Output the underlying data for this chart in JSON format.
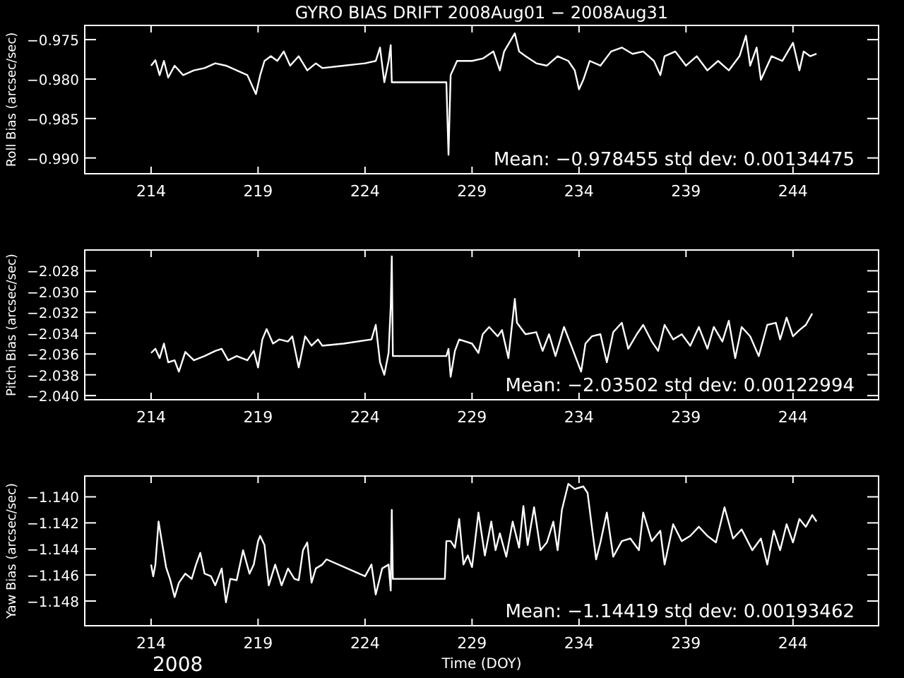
{
  "chart_data": [
    {
      "type": "line",
      "title": "GYRO BIAS DRIFT 2008Aug01 − 2008Aug31",
      "ylabel": "Roll Bias (arcsec/sec)",
      "xlim": [
        210.9,
        248
      ],
      "xticks": [
        214,
        219,
        224,
        229,
        234,
        239,
        244
      ],
      "ylim": [
        -0.992,
        -0.9732
      ],
      "yticks": [
        {
          "value": -0.975,
          "label": "−0.975"
        },
        {
          "value": -0.98,
          "label": "−0.980"
        },
        {
          "value": -0.985,
          "label": "−0.985"
        },
        {
          "value": -0.99,
          "label": "−0.990"
        }
      ],
      "grid": false,
      "annotations": [
        "Mean: −0.978455 std dev: 0.00134475"
      ],
      "series": [
        {
          "color": "#ffffff",
          "x": [
            214,
            214.2,
            214.4,
            214.6,
            214.8,
            215.1,
            215.5,
            216,
            216.5,
            217,
            217.5,
            218,
            218.5,
            218.9,
            219.1,
            219.3,
            219.6,
            219.9,
            220.2,
            220.5,
            220.9,
            221.3,
            221.7,
            222,
            223,
            224,
            224.5,
            224.7,
            224.9,
            225.1,
            225.2,
            225.25,
            227.8,
            227.9,
            228,
            228.3,
            229,
            229.5,
            230,
            230.3,
            230.5,
            231,
            231.2,
            231.5,
            232,
            232.5,
            233,
            233.5,
            233.8,
            234,
            234.2,
            234.5,
            235,
            235.5,
            236,
            236.5,
            237,
            237.5,
            237.8,
            238,
            238.5,
            239,
            239.5,
            240,
            240.5,
            241,
            241.5,
            241.8,
            242,
            242.3,
            242.5,
            243,
            243.5,
            244,
            244.3,
            244.5,
            244.8,
            245.1
          ],
          "values": [
            -0.9783,
            -0.9776,
            -0.9795,
            -0.9777,
            -0.9798,
            -0.9783,
            -0.9795,
            -0.9789,
            -0.9786,
            -0.978,
            -0.9783,
            -0.9789,
            -0.9795,
            -0.9819,
            -0.9795,
            -0.9777,
            -0.9771,
            -0.9777,
            -0.9765,
            -0.9783,
            -0.9771,
            -0.9789,
            -0.978,
            -0.9786,
            -0.9783,
            -0.978,
            -0.9777,
            -0.976,
            -0.9804,
            -0.9777,
            -0.9757,
            -0.9804,
            -0.9804,
            -0.9896,
            -0.9795,
            -0.9777,
            -0.9777,
            -0.9774,
            -0.9765,
            -0.9789,
            -0.9765,
            -0.9742,
            -0.9765,
            -0.9771,
            -0.978,
            -0.9783,
            -0.9771,
            -0.9777,
            -0.9789,
            -0.9813,
            -0.9801,
            -0.9777,
            -0.9783,
            -0.9765,
            -0.976,
            -0.9768,
            -0.9765,
            -0.9777,
            -0.9795,
            -0.9771,
            -0.9765,
            -0.9783,
            -0.9771,
            -0.9789,
            -0.9777,
            -0.9789,
            -0.9771,
            -0.9745,
            -0.9783,
            -0.976,
            -0.9801,
            -0.9771,
            -0.9777,
            -0.9754,
            -0.9789,
            -0.9765,
            -0.9771,
            -0.9768
          ]
        }
      ]
    },
    {
      "type": "line",
      "ylabel": "Pitch Bias (arcsec/sec)",
      "xlim": [
        210.9,
        248
      ],
      "xticks": [
        214,
        219,
        224,
        229,
        234,
        239,
        244
      ],
      "ylim": [
        -2.0404,
        -2.026
      ],
      "yticks": [
        {
          "value": -2.028,
          "label": "−2.028"
        },
        {
          "value": -2.03,
          "label": "−2.030"
        },
        {
          "value": -2.032,
          "label": "−2.032"
        },
        {
          "value": -2.034,
          "label": "−2.034"
        },
        {
          "value": -2.036,
          "label": "−2.036"
        },
        {
          "value": -2.038,
          "label": "−2.038"
        },
        {
          "value": -2.04,
          "label": "−2.040"
        }
      ],
      "grid": false,
      "annotations": [
        "Mean: −2.03502 std dev: 0.00122994"
      ],
      "series": [
        {
          "color": "#ffffff",
          "x": [
            214,
            214.2,
            214.4,
            214.6,
            214.8,
            215.1,
            215.3,
            215.6,
            216,
            216.5,
            217,
            217.3,
            217.6,
            218,
            218.5,
            218.8,
            219,
            219.2,
            219.4,
            219.7,
            220,
            220.4,
            220.6,
            220.9,
            221.2,
            221.5,
            221.8,
            222,
            223,
            224.3,
            224.5,
            224.7,
            224.9,
            225.1,
            225.2,
            225.25,
            225.3,
            227.8,
            227.9,
            228,
            228.2,
            228.4,
            229,
            229.3,
            229.5,
            229.8,
            230.2,
            230.4,
            230.7,
            231,
            231.1,
            231.5,
            232,
            232.3,
            232.6,
            232.9,
            233.3,
            233.6,
            234.1,
            234.3,
            234.6,
            235,
            235.3,
            235.6,
            236,
            236.3,
            236.7,
            237,
            237.4,
            237.7,
            238,
            238.4,
            238.8,
            239.2,
            239.6,
            240,
            240.3,
            240.7,
            241,
            241.3,
            241.6,
            242,
            242.4,
            242.8,
            243.2,
            243.4,
            243.7,
            244,
            244.3,
            244.6,
            244.9
          ],
          "values": [
            -2.0359,
            -2.0355,
            -2.0364,
            -2.035,
            -2.0368,
            -2.0366,
            -2.0377,
            -2.0358,
            -2.0366,
            -2.0362,
            -2.0357,
            -2.0355,
            -2.0366,
            -2.0362,
            -2.0366,
            -2.0357,
            -2.0373,
            -2.0346,
            -2.0336,
            -2.035,
            -2.0346,
            -2.0348,
            -2.0343,
            -2.0373,
            -2.0343,
            -2.0352,
            -2.0346,
            -2.0352,
            -2.035,
            -2.0346,
            -2.0332,
            -2.0368,
            -2.038,
            -2.0359,
            -2.0314,
            -2.0266,
            -2.0362,
            -2.0362,
            -2.0355,
            -2.0382,
            -2.0357,
            -2.0346,
            -2.035,
            -2.0359,
            -2.0341,
            -2.0334,
            -2.0343,
            -2.0337,
            -2.0364,
            -2.0307,
            -2.033,
            -2.0341,
            -2.0339,
            -2.0357,
            -2.0341,
            -2.0362,
            -2.0334,
            -2.035,
            -2.0377,
            -2.035,
            -2.0343,
            -2.0341,
            -2.0368,
            -2.0339,
            -2.033,
            -2.0355,
            -2.0341,
            -2.0332,
            -2.0348,
            -2.0357,
            -2.0332,
            -2.0346,
            -2.0341,
            -2.0352,
            -2.0334,
            -2.0355,
            -2.0334,
            -2.0348,
            -2.0328,
            -2.0364,
            -2.0334,
            -2.0343,
            -2.0362,
            -2.0332,
            -2.033,
            -2.0346,
            -2.0325,
            -2.0343,
            -2.0337,
            -2.0332,
            -2.0321
          ]
        }
      ]
    },
    {
      "type": "line",
      "xlabel": "Time (DOY)",
      "ylabel": "Yaw Bias (arcsec/sec)",
      "xlim": [
        210.9,
        248
      ],
      "xticks": [
        214,
        219,
        224,
        229,
        234,
        239,
        244
      ],
      "ylim": [
        -1.1499,
        -1.1384
      ],
      "yticks": [
        {
          "value": -1.14,
          "label": "−1.140"
        },
        {
          "value": -1.142,
          "label": "−1.142"
        },
        {
          "value": -1.144,
          "label": "−1.144"
        },
        {
          "value": -1.146,
          "label": "−1.146"
        },
        {
          "value": -1.148,
          "label": "−1.148"
        }
      ],
      "grid": false,
      "annotations": [
        "Mean: −1.14419 std dev: 0.00193462",
        "2008"
      ],
      "series": [
        {
          "color": "#ffffff",
          "x": [
            214,
            214.1,
            214.2,
            214.3,
            214.35,
            214.5,
            214.7,
            214.9,
            215.1,
            215.3,
            215.6,
            215.9,
            216.1,
            216.3,
            216.5,
            216.8,
            217,
            217.3,
            217.5,
            217.7,
            218,
            218.3,
            218.6,
            218.8,
            219,
            219.1,
            219.3,
            219.5,
            219.8,
            220.1,
            220.4,
            220.7,
            220.9,
            221.1,
            221.3,
            221.5,
            221.7,
            222,
            222.2,
            224,
            224.3,
            224.5,
            224.8,
            225.1,
            225.2,
            225.25,
            225.3,
            227.73,
            227.8,
            228,
            228.2,
            228.4,
            228.6,
            228.8,
            229,
            229.3,
            229.6,
            229.9,
            230.1,
            230.3,
            230.6,
            230.9,
            231.2,
            231.4,
            231.6,
            231.9,
            232.2,
            232.5,
            232.8,
            233,
            233.2,
            233.5,
            233.8,
            234.2,
            234.4,
            234.6,
            234.8,
            235,
            235.3,
            235.6,
            236,
            236.4,
            236.8,
            237,
            237.4,
            237.8,
            238,
            238.4,
            238.8,
            239.2,
            239.6,
            240,
            240.4,
            240.8,
            241.2,
            241.6,
            242.1,
            242.5,
            242.8,
            243.1,
            243.4,
            243.7,
            244,
            244.3,
            244.6,
            244.9,
            245.1
          ],
          "values": [
            -1.1452,
            -1.1461,
            -1.1452,
            -1.143,
            -1.1419,
            -1.1434,
            -1.1454,
            -1.1464,
            -1.1477,
            -1.1466,
            -1.1459,
            -1.1463,
            -1.1452,
            -1.1443,
            -1.1459,
            -1.1461,
            -1.1468,
            -1.1455,
            -1.1481,
            -1.1463,
            -1.1464,
            -1.1441,
            -1.1459,
            -1.1452,
            -1.1434,
            -1.143,
            -1.1437,
            -1.1468,
            -1.1452,
            -1.1468,
            -1.1455,
            -1.1463,
            -1.1464,
            -1.1441,
            -1.1435,
            -1.1466,
            -1.1455,
            -1.1452,
            -1.1448,
            -1.1461,
            -1.1452,
            -1.1475,
            -1.1455,
            -1.1452,
            -1.1472,
            -1.141,
            -1.1463,
            -1.1463,
            -1.1434,
            -1.1434,
            -1.1439,
            -1.1417,
            -1.1452,
            -1.1445,
            -1.1454,
            -1.1412,
            -1.1445,
            -1.1419,
            -1.1441,
            -1.1428,
            -1.1446,
            -1.1419,
            -1.1439,
            -1.1407,
            -1.1437,
            -1.1408,
            -1.1441,
            -1.1435,
            -1.1419,
            -1.1441,
            -1.141,
            -1.139,
            -1.1394,
            -1.1392,
            -1.1397,
            -1.1423,
            -1.1448,
            -1.1435,
            -1.1412,
            -1.1446,
            -1.1434,
            -1.1432,
            -1.1441,
            -1.1412,
            -1.1434,
            -1.1426,
            -1.1452,
            -1.1421,
            -1.1434,
            -1.143,
            -1.1423,
            -1.143,
            -1.1435,
            -1.1408,
            -1.1432,
            -1.1425,
            -1.1441,
            -1.1432,
            -1.1452,
            -1.1426,
            -1.1441,
            -1.1421,
            -1.1435,
            -1.1417,
            -1.1423,
            -1.1414,
            -1.1419
          ]
        }
      ]
    }
  ]
}
